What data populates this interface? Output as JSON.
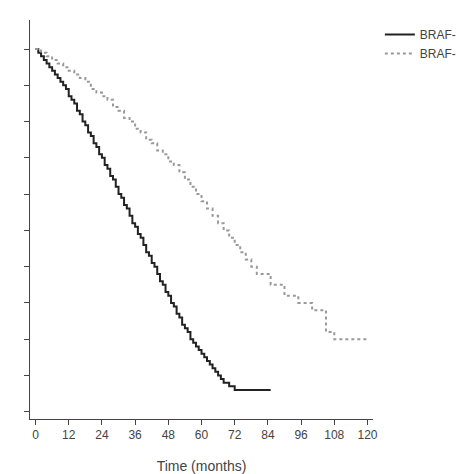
{
  "chart_data": {
    "type": "step",
    "xlabel": "Time (months)",
    "xlim": [
      -2,
      122
    ],
    "ylim": [
      -0.02,
      1.08
    ],
    "xticks": [
      0,
      12,
      24,
      36,
      48,
      60,
      72,
      84,
      96,
      108,
      120
    ],
    "yticks": [
      0,
      0.1,
      0.2,
      0.3,
      0.4,
      0.5,
      0.6,
      0.7,
      0.8,
      0.9,
      1.0
    ],
    "tick_labels": "x",
    "grid": false,
    "legend": "upper right",
    "series": [
      {
        "name": "BRAF-",
        "color": "#222222",
        "line_style": "solid",
        "x": [
          0,
          1,
          2,
          3,
          4,
          5,
          6,
          7,
          8,
          9,
          10,
          11,
          12,
          13,
          14,
          15,
          16,
          17,
          18,
          19,
          20,
          21,
          22,
          23,
          24,
          25,
          26,
          27,
          28,
          29,
          30,
          31,
          32,
          33,
          34,
          35,
          36,
          37,
          38,
          39,
          40,
          41,
          42,
          43,
          44,
          45,
          46,
          47,
          48,
          49,
          50,
          51,
          52,
          53,
          54,
          55,
          56,
          57,
          58,
          59,
          60,
          61,
          62,
          63,
          64,
          65,
          66,
          67,
          68,
          69,
          70,
          71,
          72,
          73,
          74,
          75,
          76,
          80,
          85
        ],
        "values": [
          1.0,
          0.99,
          0.98,
          0.97,
          0.96,
          0.95,
          0.94,
          0.93,
          0.92,
          0.91,
          0.9,
          0.89,
          0.87,
          0.86,
          0.85,
          0.83,
          0.82,
          0.8,
          0.79,
          0.77,
          0.76,
          0.74,
          0.73,
          0.71,
          0.7,
          0.68,
          0.67,
          0.65,
          0.64,
          0.62,
          0.6,
          0.59,
          0.57,
          0.56,
          0.54,
          0.52,
          0.51,
          0.49,
          0.48,
          0.46,
          0.44,
          0.43,
          0.41,
          0.4,
          0.38,
          0.36,
          0.35,
          0.33,
          0.32,
          0.3,
          0.29,
          0.27,
          0.26,
          0.24,
          0.23,
          0.22,
          0.2,
          0.19,
          0.18,
          0.17,
          0.16,
          0.15,
          0.14,
          0.13,
          0.12,
          0.11,
          0.1,
          0.09,
          0.08,
          0.08,
          0.07,
          0.07,
          0.06,
          0.06,
          0.06,
          0.06,
          0.06,
          0.06,
          0.06
        ]
      },
      {
        "name": "BRAF-",
        "color": "#999999",
        "line_style": "dotted",
        "x": [
          0,
          2,
          4,
          6,
          8,
          10,
          12,
          14,
          16,
          18,
          20,
          22,
          24,
          26,
          28,
          30,
          32,
          34,
          36,
          38,
          40,
          42,
          44,
          46,
          48,
          50,
          52,
          54,
          56,
          58,
          60,
          62,
          64,
          66,
          68,
          70,
          72,
          74,
          76,
          78,
          80,
          85,
          90,
          95,
          100,
          105,
          108,
          120
        ],
        "values": [
          1.0,
          0.99,
          0.98,
          0.97,
          0.96,
          0.95,
          0.94,
          0.93,
          0.92,
          0.91,
          0.89,
          0.88,
          0.87,
          0.86,
          0.84,
          0.83,
          0.81,
          0.8,
          0.78,
          0.77,
          0.75,
          0.74,
          0.72,
          0.71,
          0.69,
          0.68,
          0.66,
          0.64,
          0.62,
          0.6,
          0.58,
          0.56,
          0.54,
          0.52,
          0.5,
          0.48,
          0.46,
          0.44,
          0.42,
          0.4,
          0.38,
          0.35,
          0.32,
          0.3,
          0.28,
          0.22,
          0.2,
          0.2
        ]
      }
    ]
  }
}
